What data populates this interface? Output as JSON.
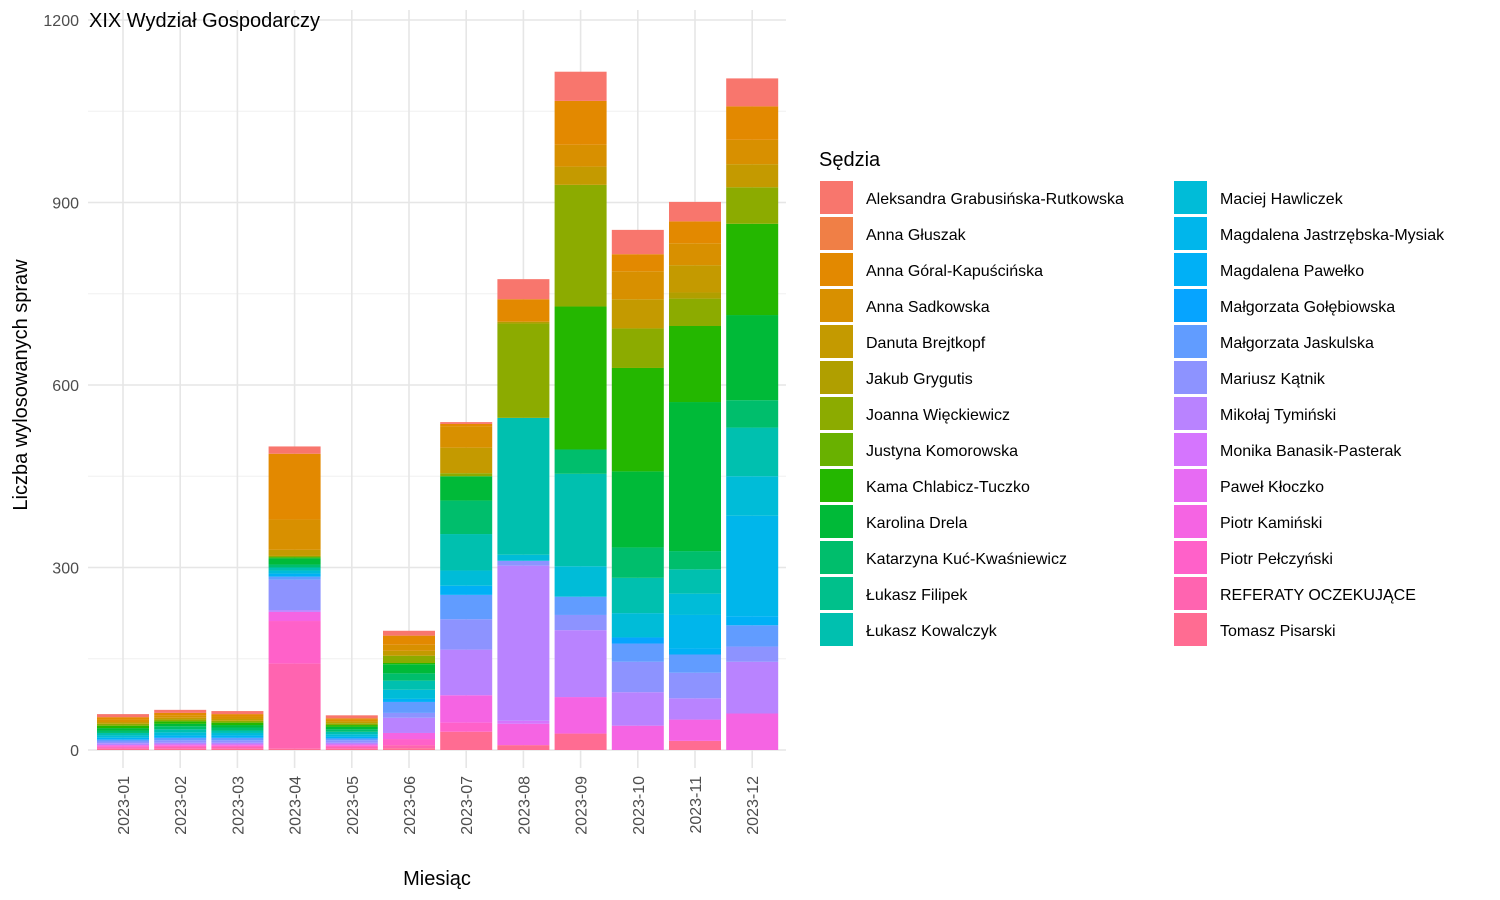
{
  "chart_data": {
    "type": "bar",
    "stacked": true,
    "title": "XIX Wydział Gospodarczy",
    "xlabel": "Miesiąc",
    "ylabel": "Liczba wylosowanych spraw",
    "ylim": [
      0,
      1200
    ],
    "yticks": [
      "0",
      "300",
      "600",
      "900",
      "1200"
    ],
    "grid": true,
    "legend_title": "Sędzia",
    "legend_position": "right",
    "categories": [
      "2023-01",
      "2023-02",
      "2023-03",
      "2023-04",
      "2023-05",
      "2023-06",
      "2023-07",
      "2023-08",
      "2023-09",
      "2023-10",
      "2023-11",
      "2023-12"
    ],
    "series": [
      {
        "name": "Aleksandra Grabusińska-Rutkowska",
        "color": "#F8766D",
        "values": [
          5,
          5,
          5,
          12,
          5,
          8,
          3,
          33,
          48,
          40,
          32,
          46
        ]
      },
      {
        "name": "Anna Głuszak",
        "color": "#F07F46",
        "values": [
          0,
          0,
          0,
          0,
          0,
          0,
          0,
          0,
          0,
          0,
          0,
          0
        ]
      },
      {
        "name": "Anna Góral-Kapuścińska",
        "color": "#E38900",
        "values": [
          4,
          4,
          4,
          108,
          2,
          15,
          4,
          37,
          72,
          28,
          36,
          55
        ]
      },
      {
        "name": "Anna Sadkowska",
        "color": "#D89000",
        "values": [
          4,
          4,
          4,
          50,
          3,
          10,
          35,
          0,
          36,
          46,
          36,
          40
        ]
      },
      {
        "name": "Danuta Brejtkopf",
        "color": "#C49A00",
        "values": [
          3,
          3,
          3,
          10,
          3,
          8,
          42,
          0,
          30,
          48,
          45,
          38
        ]
      },
      {
        "name": "Jakub Grygutis",
        "color": "#B09F00",
        "values": [
          0,
          0,
          0,
          0,
          0,
          0,
          0,
          3,
          0,
          0,
          10,
          0
        ]
      },
      {
        "name": "Joanna Więckiewicz",
        "color": "#8CAB00",
        "values": [
          3,
          3,
          3,
          2,
          3,
          12,
          5,
          155,
          200,
          65,
          45,
          60
        ]
      },
      {
        "name": "Justyna Komorowska",
        "color": "#69B100",
        "values": [
          0,
          0,
          0,
          0,
          0,
          0,
          0,
          0,
          0,
          0,
          0,
          0
        ]
      },
      {
        "name": "Kama Chlabicz-Tuczko",
        "color": "#24B700",
        "values": [
          4,
          4,
          4,
          2,
          3,
          2,
          0,
          0,
          235,
          170,
          125,
          150
        ]
      },
      {
        "name": "Karolina Drela",
        "color": "#00BA38",
        "values": [
          4,
          4,
          4,
          10,
          4,
          15,
          40,
          0,
          0,
          125,
          245,
          140
        ]
      },
      {
        "name": "Katarzyna Kuć-Kwaśniewicz",
        "color": "#00BE6C",
        "values": [
          4,
          5,
          5,
          5,
          4,
          12,
          55,
          0,
          40,
          50,
          30,
          45
        ]
      },
      {
        "name": "Łukasz Filipek",
        "color": "#00C08B",
        "values": [
          0,
          0,
          0,
          0,
          0,
          0,
          0,
          0,
          0,
          0,
          0,
          0
        ]
      },
      {
        "name": "Łukasz Kowalczyk",
        "color": "#00C0AF",
        "values": [
          4,
          5,
          4,
          5,
          4,
          15,
          60,
          225,
          152,
          58,
          40,
          80
        ]
      },
      {
        "name": "Maciej Hawliczek",
        "color": "#00BCD8",
        "values": [
          4,
          5,
          4,
          5,
          4,
          15,
          25,
          10,
          50,
          40,
          35,
          65
        ]
      },
      {
        "name": "Magdalena Jastrzębska-Mysiak",
        "color": "#00B6EB",
        "values": [
          0,
          0,
          0,
          0,
          0,
          0,
          0,
          0,
          0,
          0,
          55,
          165
        ]
      },
      {
        "name": "Magdalena Pawełko",
        "color": "#00B0F6",
        "values": [
          3,
          4,
          4,
          5,
          3,
          5,
          15,
          0,
          0,
          0,
          10,
          15
        ]
      },
      {
        "name": "Małgorzata Gołębiowska",
        "color": "#06A4FF",
        "values": [
          0,
          0,
          0,
          0,
          0,
          0,
          0,
          0,
          0,
          10,
          0,
          0
        ]
      },
      {
        "name": "Małgorzata Jaskulska",
        "color": "#619CFF",
        "values": [
          3,
          4,
          4,
          5,
          3,
          18,
          40,
          0,
          30,
          30,
          30,
          35
        ]
      },
      {
        "name": "Mariusz Kątnik",
        "color": "#8D93FF",
        "values": [
          3,
          4,
          4,
          50,
          4,
          8,
          50,
          8,
          25,
          50,
          42,
          25
        ]
      },
      {
        "name": "Mikołaj Tymiński",
        "color": "#B983FF",
        "values": [
          3,
          3,
          3,
          3,
          3,
          25,
          75,
          255,
          110,
          55,
          35,
          85
        ]
      },
      {
        "name": "Monika Banasik-Pasterak",
        "color": "#D575FE",
        "values": [
          0,
          0,
          0,
          0,
          0,
          0,
          0,
          5,
          0,
          0,
          0,
          0
        ]
      },
      {
        "name": "Paweł Kłoczko",
        "color": "#E76BF3",
        "values": [
          0,
          0,
          0,
          0,
          0,
          0,
          0,
          0,
          0,
          0,
          0,
          0
        ]
      },
      {
        "name": "Piotr Kamiński",
        "color": "#F564E3",
        "values": [
          2,
          2,
          2,
          15,
          2,
          10,
          45,
          35,
          60,
          40,
          35,
          60
        ]
      },
      {
        "name": "Piotr Pełczyński",
        "color": "#FF61C9",
        "values": [
          2,
          2,
          2,
          70,
          2,
          10,
          15,
          0,
          0,
          0,
          0,
          0
        ]
      },
      {
        "name": "REFERATY OCZEKUJĄCE",
        "color": "#FF64B0",
        "values": [
          2,
          3,
          3,
          140,
          3,
          5,
          0,
          0,
          0,
          0,
          0,
          0
        ]
      },
      {
        "name": "Tomasz Pisarski",
        "color": "#FF6C92",
        "values": [
          2,
          2,
          2,
          2,
          2,
          3,
          30,
          8,
          27,
          0,
          15,
          0
        ]
      }
    ]
  }
}
